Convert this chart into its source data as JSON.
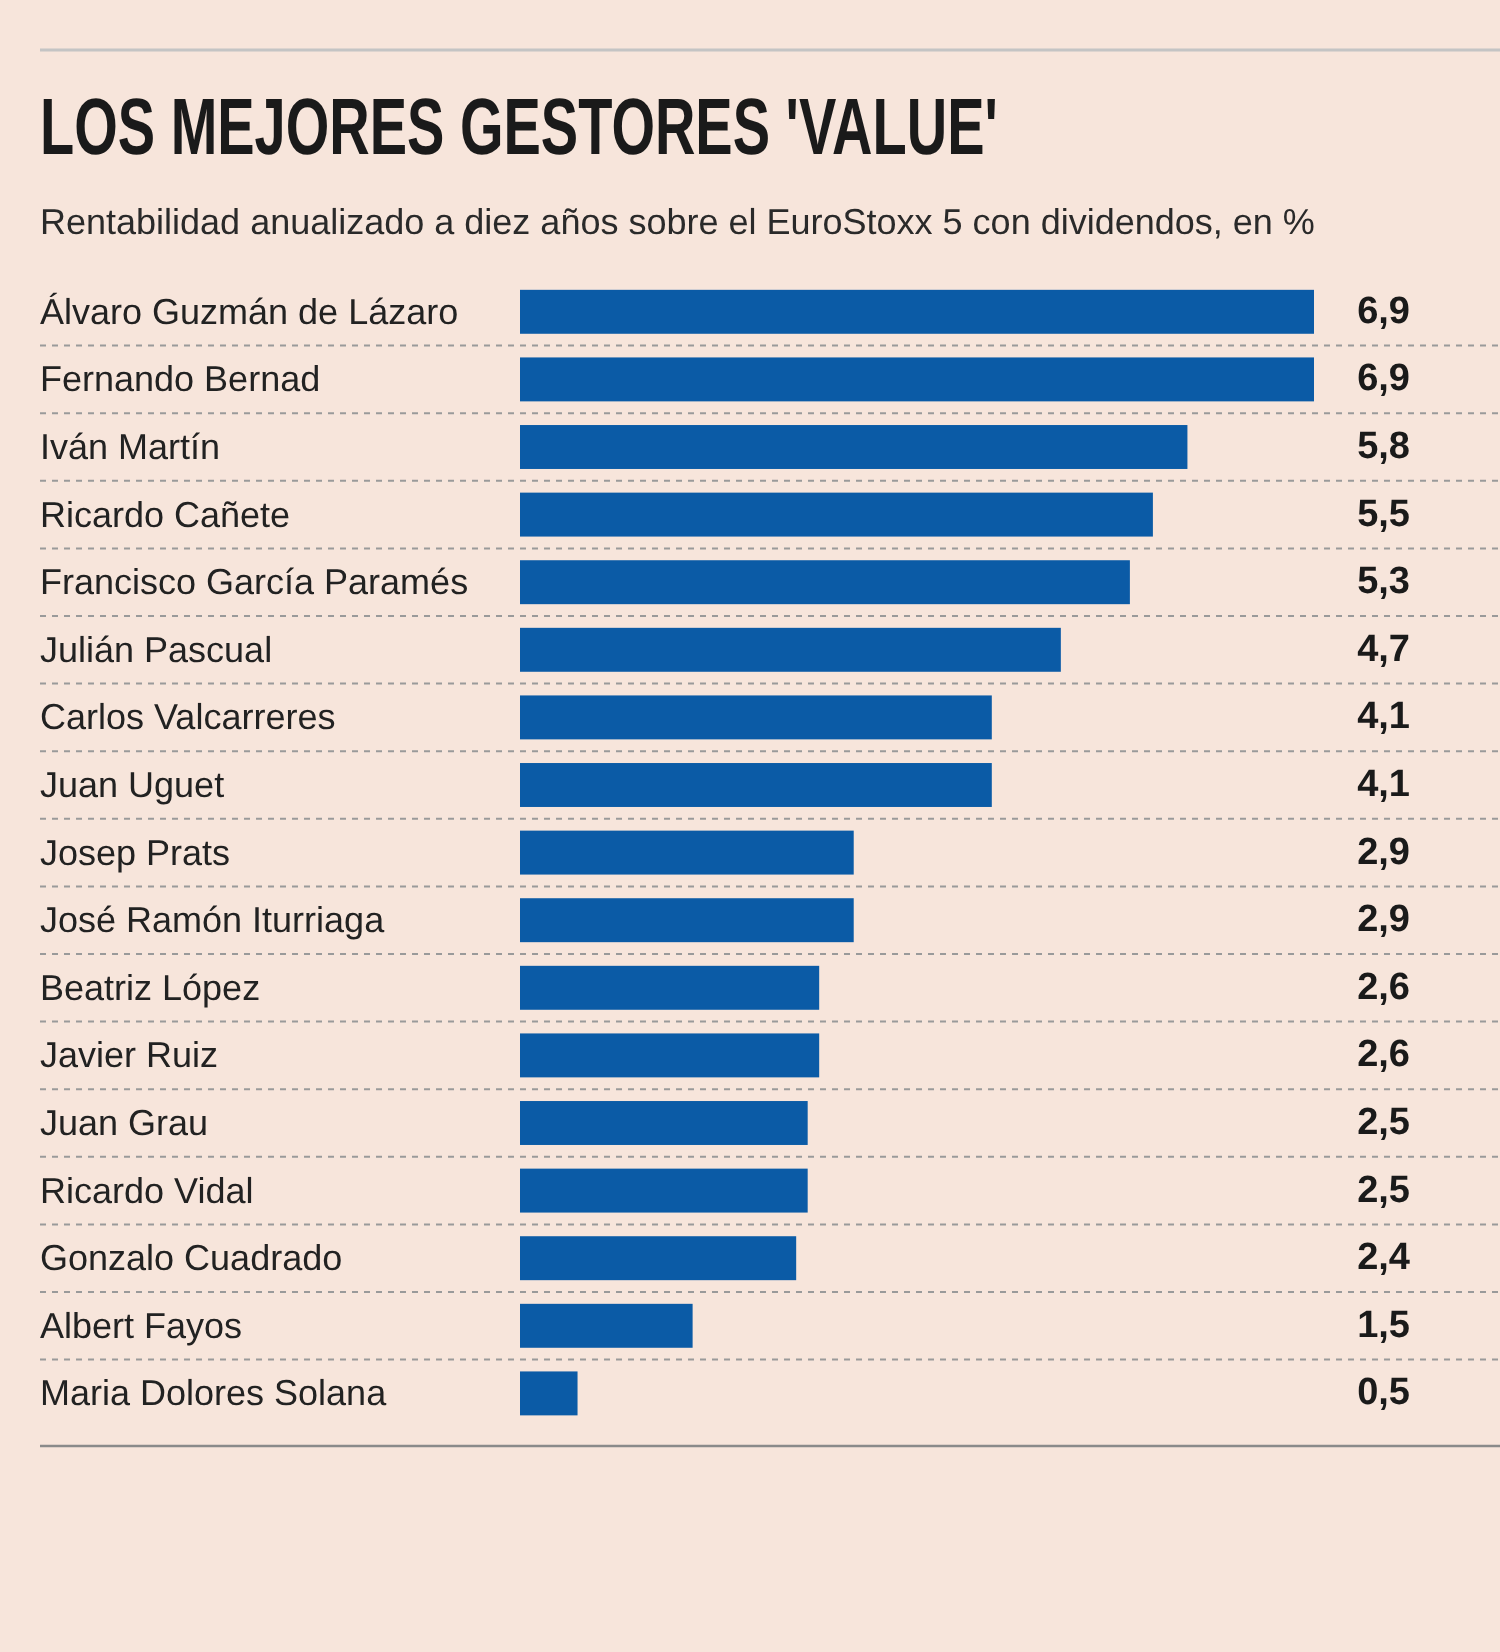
{
  "chart_data": {
    "type": "bar",
    "orientation": "horizontal",
    "title": "LOS MEJORES GESTORES 'VALUE'",
    "subtitle": "Rentabilidad anualizado a diez años sobre el EuroStoxx 5 con dividendos, en %",
    "categories": [
      "Álvaro Guzmán de Lázaro",
      "Fernando Bernad",
      "Iván Martín",
      "Ricardo Cañete",
      "Francisco García Paramés",
      "Julián Pascual",
      "Carlos Valcarreres",
      "Juan Uguet",
      "Josep Prats",
      "José Ramón Iturriaga",
      "Beatriz López",
      "Javier Ruiz",
      "Juan Grau",
      "Ricardo Vidal",
      "Gonzalo Cuadrado",
      "Albert Fayos",
      "Maria Dolores Solana"
    ],
    "values": [
      6.9,
      6.9,
      5.8,
      5.5,
      5.3,
      4.7,
      4.1,
      4.1,
      2.9,
      2.9,
      2.6,
      2.6,
      2.5,
      2.5,
      2.4,
      1.5,
      0.5
    ],
    "value_labels": [
      "6,9",
      "6,9",
      "5,8",
      "5,5",
      "5,3",
      "4,7",
      "4,1",
      "4,1",
      "2,9",
      "2,9",
      "2,6",
      "2,6",
      "2,5",
      "2,5",
      "2,4",
      "1,5",
      "0,5"
    ],
    "color": "#0b5ba6"
  }
}
